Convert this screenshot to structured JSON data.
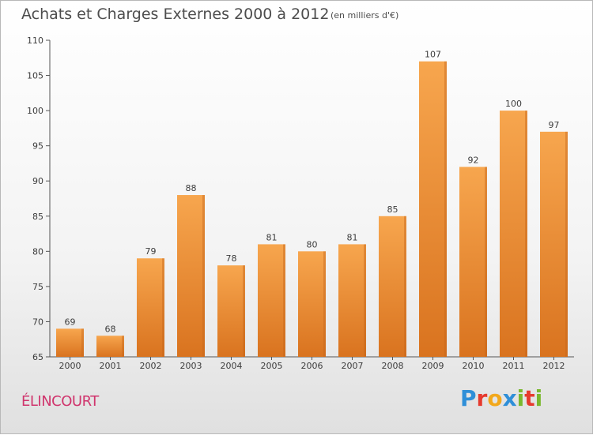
{
  "title": "Achats et Charges Externes 2000 à 2012",
  "unit": "(en milliers d'€)",
  "commune": "ÉLINCOURT",
  "logo": {
    "letters": [
      "P",
      "r",
      "o",
      "x",
      "i",
      "t",
      "i"
    ],
    "colors": [
      "#2f8fd8",
      "#e63a2e",
      "#f2a81c",
      "#2f8fd8",
      "#7ab82e",
      "#e63a2e",
      "#7ab82e"
    ]
  },
  "colors": {
    "bar_top": "#f7a64e",
    "bar_bottom": "#d9731f",
    "bar_shade": "#c5651b",
    "title_text": "#4d4d4d",
    "commune_text": "#d0356d"
  },
  "chart_data": {
    "type": "bar",
    "categories": [
      "2000",
      "2001",
      "2002",
      "2003",
      "2004",
      "2005",
      "2006",
      "2007",
      "2008",
      "2009",
      "2010",
      "2011",
      "2012"
    ],
    "values": [
      69,
      68,
      79,
      88,
      78,
      81,
      80,
      81,
      85,
      107,
      92,
      100,
      97
    ],
    "ylim": [
      65,
      110
    ],
    "yticks": [
      65,
      70,
      75,
      80,
      85,
      90,
      95,
      100,
      105,
      110
    ],
    "grid": false,
    "legend": "none"
  }
}
